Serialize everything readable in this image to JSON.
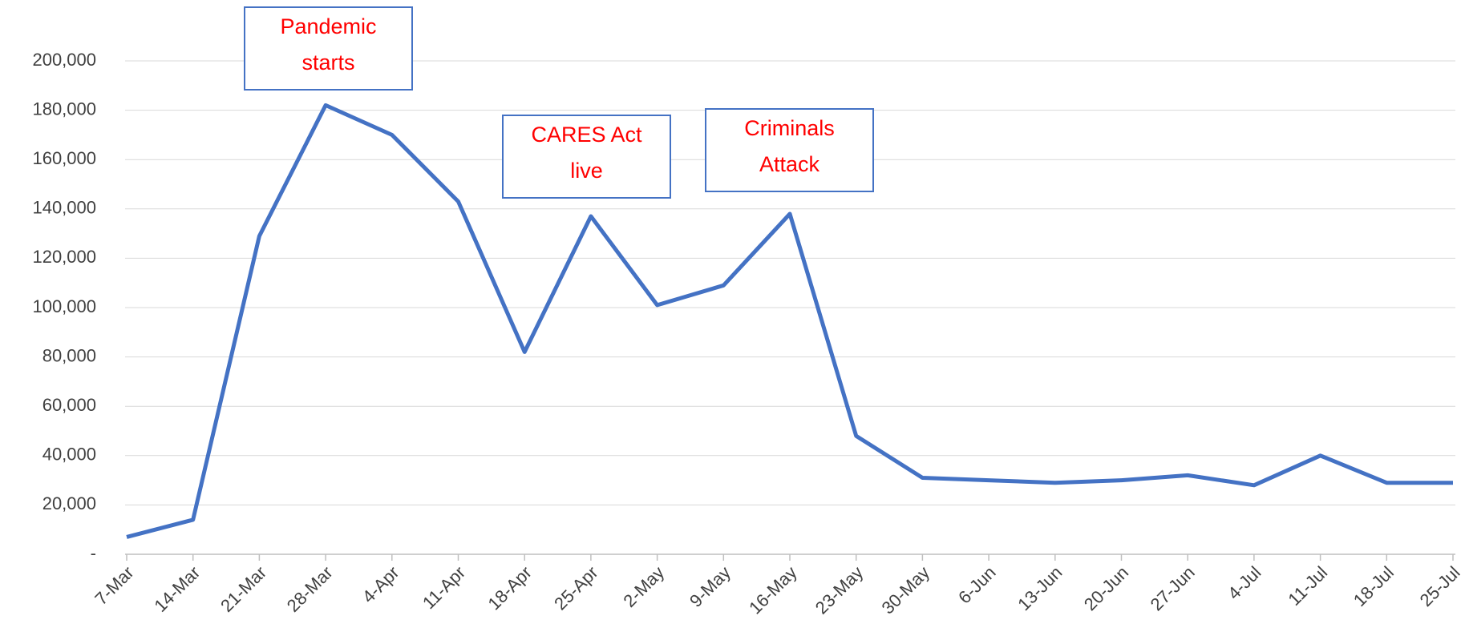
{
  "chart_data": {
    "type": "line",
    "categories": [
      "7-Mar",
      "14-Mar",
      "21-Mar",
      "28-Mar",
      "4-Apr",
      "11-Apr",
      "18-Apr",
      "25-Apr",
      "2-May",
      "9-May",
      "16-May",
      "23-May",
      "30-May",
      "6-Jun",
      "13-Jun",
      "20-Jun",
      "27-Jun",
      "4-Jul",
      "11-Jul",
      "18-Jul",
      "25-Jul"
    ],
    "series": [
      {
        "color": "#4472c4",
        "values": [
          7000,
          14000,
          129000,
          182000,
          170000,
          143000,
          82000,
          137000,
          101000,
          109000,
          138000,
          48000,
          31000,
          30000,
          29000,
          30000,
          32000,
          28000,
          40000,
          29000,
          29000
        ]
      }
    ],
    "ylim": [
      0,
      200000
    ],
    "yticks": [
      {
        "value": 0,
        "label": "-"
      },
      {
        "value": 20000,
        "label": "20,000"
      },
      {
        "value": 40000,
        "label": "40,000"
      },
      {
        "value": 60000,
        "label": "60,000"
      },
      {
        "value": 80000,
        "label": "80,000"
      },
      {
        "value": 100000,
        "label": "100,000"
      },
      {
        "value": 120000,
        "label": "120,000"
      },
      {
        "value": 140000,
        "label": "140,000"
      },
      {
        "value": 160000,
        "label": "160,000"
      },
      {
        "value": 180000,
        "label": "180,000"
      },
      {
        "value": 200000,
        "label": "200,000"
      }
    ],
    "grid": true,
    "annotations": [
      {
        "lines": [
          "Pandemic",
          "starts"
        ]
      },
      {
        "lines": [
          "CARES Act",
          "live"
        ]
      },
      {
        "lines": [
          "Criminals",
          "Attack"
        ]
      }
    ]
  }
}
